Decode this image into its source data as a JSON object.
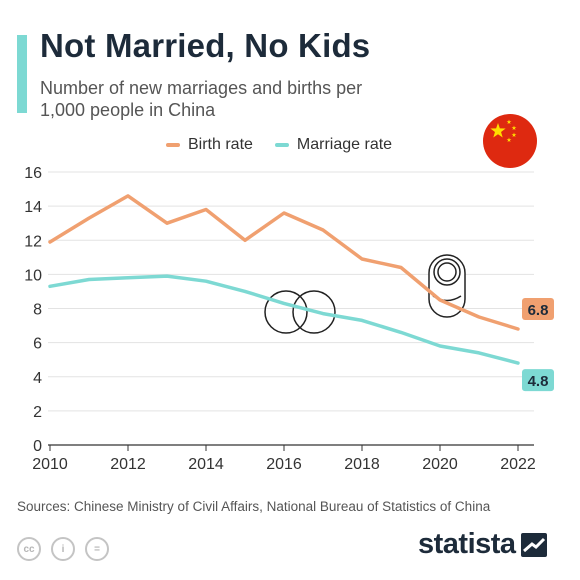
{
  "header": {
    "title": "Not Married, No Kids",
    "subtitle": "Number of new marriages and births per 1,000 people in China"
  },
  "colors": {
    "accent": "#7dd9d3",
    "birth": "#f0a070",
    "marriage": "#7dd9d3",
    "flag_red": "#de2910",
    "flag_star": "#ffde00"
  },
  "icons": [
    "china-flag-icon",
    "wedding-rings-icon",
    "baby-icon",
    "creative-commons-icon",
    "attribution-icon",
    "no-derivatives-icon",
    "statista-logo-icon"
  ],
  "chart_data": {
    "type": "line",
    "x": [
      2010,
      2011,
      2012,
      2013,
      2014,
      2015,
      2016,
      2017,
      2018,
      2019,
      2020,
      2021,
      2022
    ],
    "xticks": [
      2010,
      2012,
      2014,
      2016,
      2018,
      2020,
      2022
    ],
    "yticks": [
      0,
      2,
      4,
      6,
      8,
      10,
      12,
      14,
      16
    ],
    "ylim": [
      0,
      16
    ],
    "xlim": [
      2010,
      2022
    ],
    "grid": true,
    "legend": "top",
    "series": [
      {
        "name": "Birth rate",
        "values": [
          11.9,
          13.3,
          14.6,
          13.0,
          13.8,
          12.0,
          13.6,
          12.6,
          10.9,
          10.4,
          8.5,
          7.5,
          6.8
        ],
        "end_label": "6.8"
      },
      {
        "name": "Marriage rate",
        "values": [
          9.3,
          9.7,
          9.8,
          9.9,
          9.6,
          9.0,
          8.3,
          7.7,
          7.3,
          6.6,
          5.8,
          5.4,
          4.8
        ],
        "end_label": "4.8"
      }
    ]
  },
  "footer": {
    "source": "Sources: Chinese Ministry of Civil Affairs, National Bureau of Statistics of China",
    "license_icons": [
      "cc",
      "i",
      "="
    ],
    "brand": "statista"
  }
}
